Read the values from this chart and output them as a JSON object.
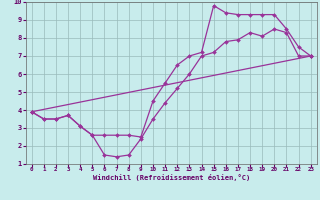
{
  "bg_color": "#c8ecec",
  "grid_color": "#99bbbb",
  "line_color": "#993399",
  "xlim": [
    -0.5,
    23.5
  ],
  "ylim": [
    1,
    10
  ],
  "xticks": [
    0,
    1,
    2,
    3,
    4,
    5,
    6,
    7,
    8,
    9,
    10,
    11,
    12,
    13,
    14,
    15,
    16,
    17,
    18,
    19,
    20,
    21,
    22,
    23
  ],
  "yticks": [
    1,
    2,
    3,
    4,
    5,
    6,
    7,
    8,
    9,
    10
  ],
  "line1_x": [
    0,
    1,
    2,
    3,
    4,
    5,
    6,
    7,
    8,
    9,
    10,
    11,
    12,
    13,
    14,
    15,
    16,
    17,
    18,
    19,
    20,
    21,
    22,
    23
  ],
  "line1_y": [
    3.9,
    3.5,
    3.5,
    3.7,
    3.1,
    2.6,
    1.5,
    1.4,
    1.5,
    2.4,
    3.5,
    4.4,
    5.2,
    6.0,
    7.0,
    7.2,
    7.8,
    7.9,
    8.3,
    8.1,
    8.5,
    8.3,
    7.0,
    7.0
  ],
  "line2_x": [
    0,
    1,
    2,
    3,
    4,
    5,
    6,
    7,
    8,
    9,
    10,
    11,
    12,
    13,
    14,
    15,
    16,
    17,
    18,
    19,
    20,
    21,
    22,
    23
  ],
  "line2_y": [
    3.9,
    3.5,
    3.5,
    3.7,
    3.1,
    2.6,
    2.6,
    2.6,
    2.6,
    2.5,
    4.5,
    5.5,
    6.5,
    7.0,
    7.2,
    9.8,
    9.4,
    9.3,
    9.3,
    9.3,
    9.3,
    8.5,
    7.5,
    7.0
  ],
  "line3_x": [
    0,
    23
  ],
  "line3_y": [
    3.9,
    7.0
  ],
  "xlabel": "Windchill (Refroidissement éolien,°C)",
  "xlabel_color": "#660066",
  "tick_color": "#660066",
  "spine_color": "#666666",
  "marker": "D",
  "markersize": 2.0,
  "linewidth": 0.9,
  "xlabel_fontsize": 5.0,
  "xtick_fontsize": 4.2,
  "ytick_fontsize": 5.0
}
